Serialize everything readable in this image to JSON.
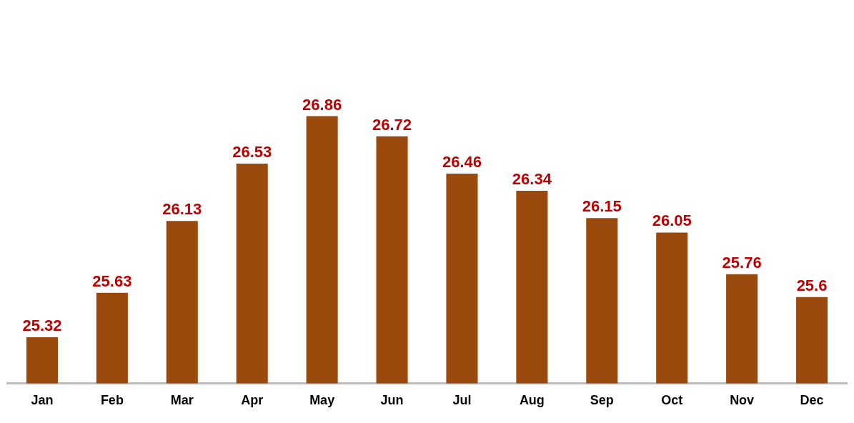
{
  "chart_data": {
    "type": "bar",
    "categories": [
      "Jan",
      "Feb",
      "Mar",
      "Apr",
      "May",
      "Jun",
      "Jul",
      "Aug",
      "Sep",
      "Oct",
      "Nov",
      "Dec"
    ],
    "values": [
      25.32,
      25.63,
      26.13,
      26.53,
      26.86,
      26.72,
      26.46,
      26.34,
      26.15,
      26.05,
      25.76,
      25.6
    ],
    "color": "#9a4a0c",
    "data_labels": true,
    "grid": false,
    "legend": false
  }
}
